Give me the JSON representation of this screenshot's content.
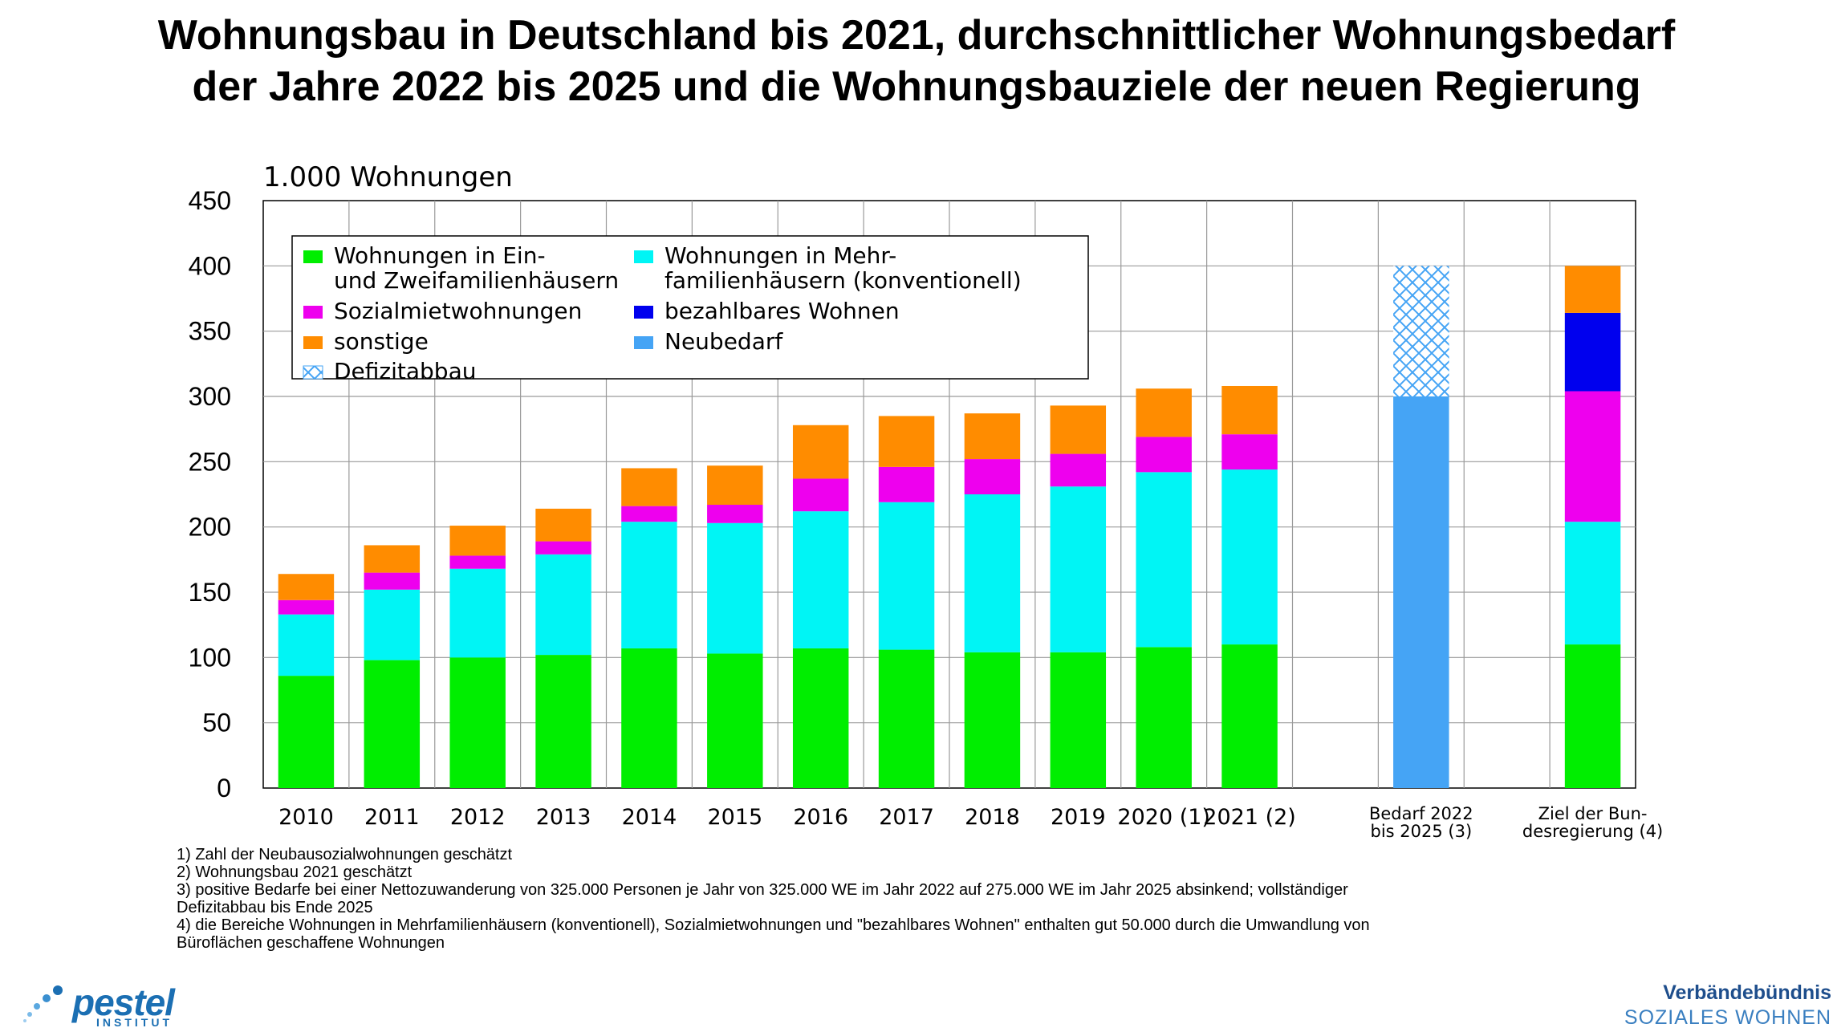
{
  "title_line1": "Wohnungsbau in Deutschland bis 2021, durchschnittlicher Wohnungsbedarf",
  "title_line2": "der Jahre 2022 bis 2025 und die Wohnungsbauziele der neuen Regierung",
  "chart_data": {
    "type": "bar",
    "stacked": true,
    "ylabel": "1.000 Wohnungen",
    "ylim": [
      0,
      450
    ],
    "yticks": [
      0,
      50,
      100,
      150,
      200,
      250,
      300,
      350,
      400,
      450
    ],
    "grid": true,
    "legend_position": "top-left",
    "categories": [
      "2010",
      "2011",
      "2012",
      "2013",
      "2014",
      "2015",
      "2016",
      "2017",
      "2018",
      "2019",
      "2020 (1)",
      "2021 (2)",
      "",
      "Bedarf 2022\nbis 2025 (3)",
      "",
      "Ziel der Bun-\ndesregierung (4)"
    ],
    "series": [
      {
        "name": "Wohnungen in Ein- und Zweifamilienhäusern",
        "legend_lines": [
          "Wohnungen in Ein-",
          "und Zweifamilienhäusern"
        ],
        "color": "#00ee00",
        "values": [
          86,
          98,
          100,
          102,
          107,
          103,
          107,
          106,
          104,
          104,
          108,
          110,
          0,
          0,
          0,
          110
        ]
      },
      {
        "name": "Wohnungen in Mehrfamilienhäusern (konventionell)",
        "legend_lines": [
          "Wohnungen in Mehr-",
          "familienhäusern (konventionell)"
        ],
        "color": "#00f5f5",
        "values": [
          47,
          54,
          68,
          77,
          97,
          100,
          105,
          113,
          121,
          127,
          134,
          134,
          0,
          0,
          0,
          94
        ]
      },
      {
        "name": "Sozialmietwohnungen",
        "legend_lines": [
          "Sozialmietwohnungen"
        ],
        "color": "#ee00ee",
        "values": [
          11,
          13,
          10,
          10,
          12,
          14,
          25,
          27,
          27,
          25,
          27,
          27,
          0,
          0,
          0,
          100
        ]
      },
      {
        "name": "bezahlbares Wohnen",
        "legend_lines": [
          "bezahlbares Wohnen"
        ],
        "color": "#0000ee",
        "values": [
          0,
          0,
          0,
          0,
          0,
          0,
          0,
          0,
          0,
          0,
          0,
          0,
          0,
          0,
          0,
          60
        ]
      },
      {
        "name": "sonstige",
        "legend_lines": [
          "sonstige"
        ],
        "color": "#ff8c00",
        "values": [
          20,
          21,
          23,
          25,
          29,
          30,
          41,
          39,
          35,
          37,
          37,
          37,
          0,
          0,
          0,
          36
        ]
      },
      {
        "name": "Neubedarf",
        "legend_lines": [
          "Neubedarf"
        ],
        "color": "#45a4f5",
        "values": [
          0,
          0,
          0,
          0,
          0,
          0,
          0,
          0,
          0,
          0,
          0,
          0,
          0,
          300,
          0,
          0
        ]
      },
      {
        "name": "Defizitabbau",
        "legend_lines": [
          "Defizitabbau"
        ],
        "color": "#45a4f5",
        "pattern": "crosshatch",
        "values": [
          0,
          0,
          0,
          0,
          0,
          0,
          0,
          0,
          0,
          0,
          0,
          0,
          0,
          100,
          0,
          0
        ]
      }
    ]
  },
  "footnotes": [
    "1) Zahl der Neubausozialwohnungen geschätzt",
    "2) Wohnungsbau 2021 geschätzt",
    "3) positive Bedarfe bei einer Nettozuwanderung von 325.000 Personen je Jahr von 325.000 WE im Jahr 2022 auf 275.000 WE im Jahr 2025 absinkend; vollständiger",
    "Defizitabbau bis Ende 2025",
    "4) die Bereiche Wohnungen in Mehrfamilienhäusern (konventionell), Sozialmietwohnungen und \"bezahlbares Wohnen\" enthalten gut 50.000 durch die Umwandlung von",
    "Büroflächen geschaffene Wohnungen"
  ],
  "logo": {
    "name": "pestel",
    "sub": "INSTITUT"
  },
  "brand": {
    "line1": "Verbändebündnis",
    "line2": "SOZIALES WOHNEN"
  }
}
